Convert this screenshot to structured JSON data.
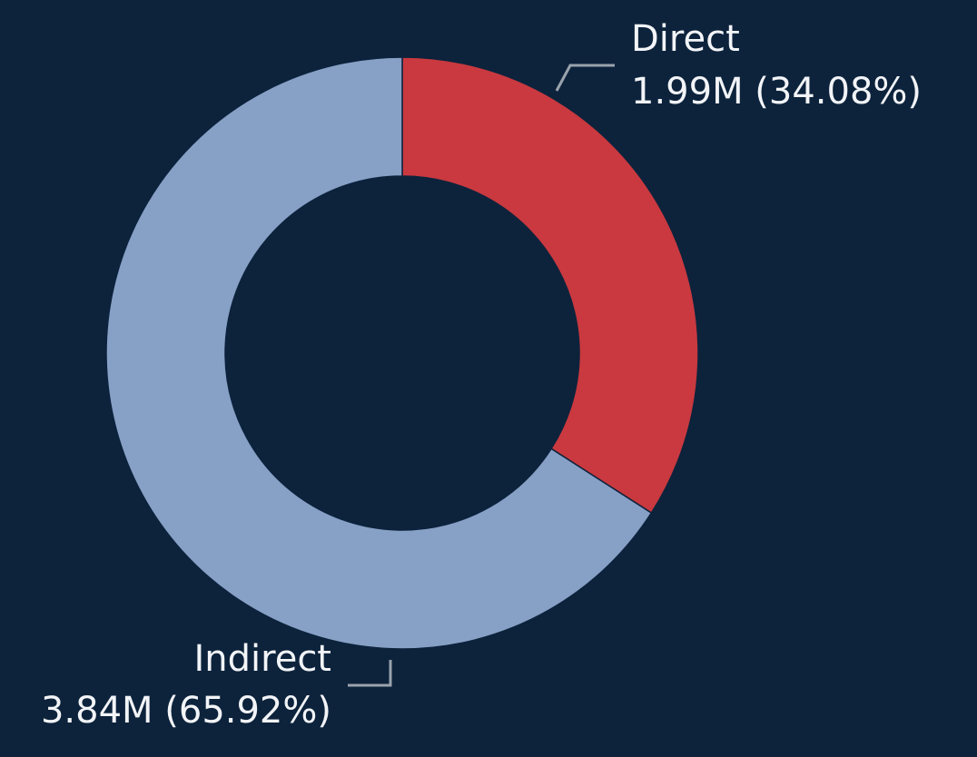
{
  "chart_data": {
    "type": "donut",
    "categories": [
      "Direct",
      "Indirect"
    ],
    "values": [
      34.08,
      65.92
    ],
    "value_labels": [
      "1.99M (34.08%)",
      "3.84M (65.92%)"
    ],
    "colors": [
      "#c9393f",
      "#87a0c6"
    ]
  }
}
